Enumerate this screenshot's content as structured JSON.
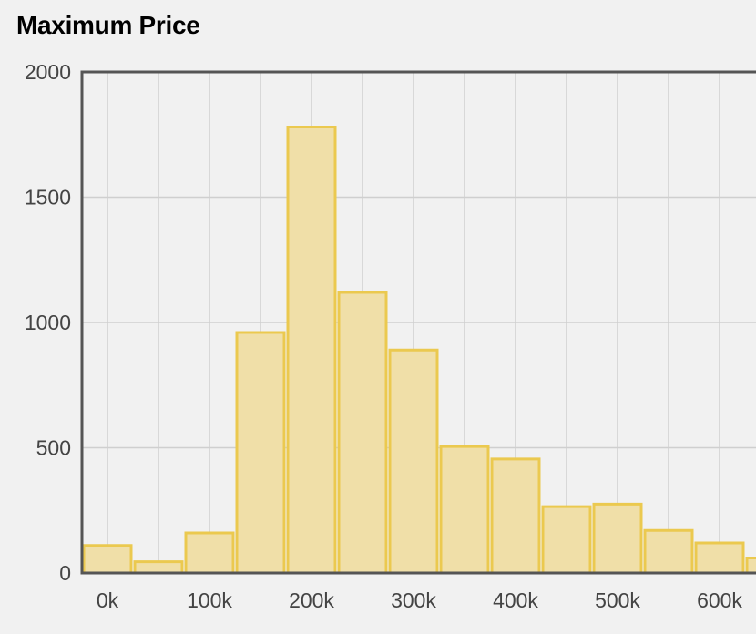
{
  "chart_data": {
    "type": "bar",
    "title": "Maximum Price",
    "xlabel": "",
    "ylabel": "",
    "bin_width": 50000,
    "bins_start": [
      -25000,
      25000,
      75000,
      125000,
      175000,
      225000,
      275000,
      325000,
      375000,
      425000,
      475000,
      525000,
      575000,
      625000
    ],
    "values": [
      110,
      45,
      160,
      960,
      1780,
      1120,
      890,
      505,
      455,
      265,
      275,
      170,
      120,
      60
    ],
    "x_ticks": [
      {
        "value": 0,
        "label": "0k"
      },
      {
        "value": 100000,
        "label": "100k"
      },
      {
        "value": 200000,
        "label": "200k"
      },
      {
        "value": 300000,
        "label": "300k"
      },
      {
        "value": 400000,
        "label": "400k"
      },
      {
        "value": 500000,
        "label": "500k"
      },
      {
        "value": 600000,
        "label": "600k"
      }
    ],
    "y_ticks": [
      {
        "value": 0,
        "label": "0"
      },
      {
        "value": 500,
        "label": "500"
      },
      {
        "value": 1000,
        "label": "1000"
      },
      {
        "value": 1500,
        "label": "1500"
      },
      {
        "value": 2000,
        "label": "2000"
      }
    ],
    "ylim": [
      0,
      2000
    ],
    "grid": true,
    "bar_fill": "#f0dfa8",
    "bar_stroke": "#ebc94f"
  }
}
